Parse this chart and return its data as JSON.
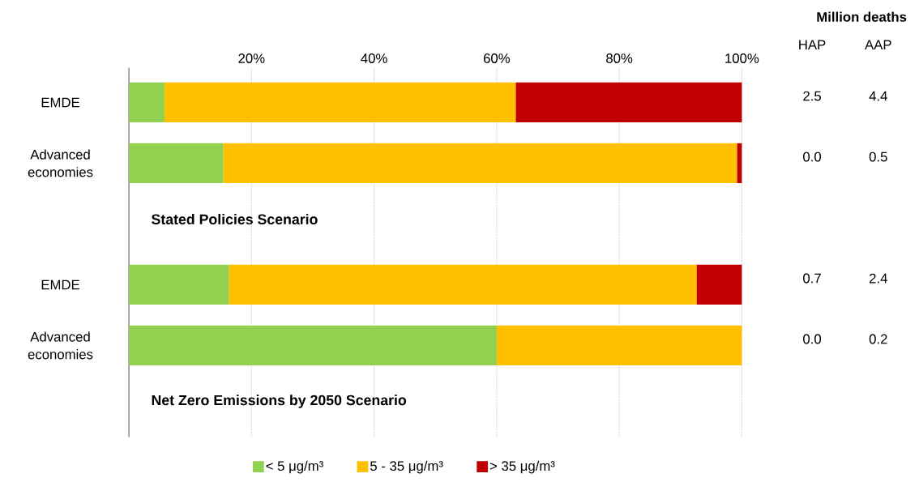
{
  "chart_data": {
    "type": "bar",
    "orientation": "horizontal",
    "stacked": true,
    "categories": [
      "EMDE",
      "Advanced economies",
      null,
      "EMDE",
      "Advanced economies",
      null
    ],
    "series": [
      {
        "name": "< 5 μg/m³",
        "color": "#92d050",
        "values": [
          5.8,
          15.4,
          null,
          16.3,
          60.0,
          null
        ]
      },
      {
        "name": "5 - 35 μg/m³",
        "color": "#ffc000",
        "values": [
          57.3,
          83.8,
          null,
          76.3,
          40.0,
          null
        ]
      },
      {
        "name": "> 35 μg/m³",
        "color": "#c00000",
        "values": [
          36.9,
          0.8,
          null,
          7.4,
          null,
          null
        ]
      }
    ],
    "xlim": [
      0,
      100
    ],
    "xticks": [
      {
        "value": 20,
        "label": "20%"
      },
      {
        "value": 40,
        "label": "40%"
      },
      {
        "value": 60,
        "label": "60%"
      },
      {
        "value": 80,
        "label": "80%"
      },
      {
        "value": 100,
        "label": "100%"
      }
    ],
    "grid": "x",
    "legend": "bottom",
    "annotations": [
      "Stated Policies Scenario",
      "Net Zero Emissions by 2050 Scenario",
      "Million deaths",
      "HAP",
      "AAP",
      "2.5",
      "4.4",
      "0.0",
      "0.5",
      "0.7",
      "2.4",
      "0.0",
      "0.2"
    ]
  }
}
